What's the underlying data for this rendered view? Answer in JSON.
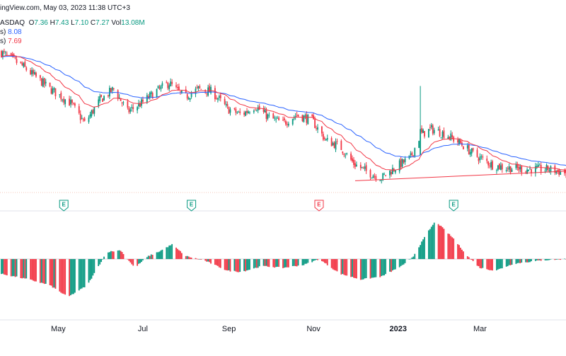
{
  "header": {
    "credit": "ingView.com, May 03, 2023 11:38 UTC+3",
    "exchange": "ASDAQ",
    "o_label": "O",
    "o": "7.36",
    "h_label": "H",
    "h": "7.43",
    "l_label": "L",
    "l": "7.10",
    "c_label": "C",
    "c": "7.27",
    "vol_label": "Vol",
    "vol": "13.08M",
    "ma1_prefix": "s)",
    "ma1_value": "8.08",
    "ma2_prefix": "s)",
    "ma2_value": "7.69"
  },
  "colors": {
    "up": "#089981",
    "down": "#f23645",
    "ma_slow": "#2962ff",
    "ma_fast": "#f23645",
    "trendline": "#f23645",
    "grid": "#f0f3fa",
    "earnings_up": "#089981",
    "earnings_down": "#f23645"
  },
  "chart_data": {
    "type": "candlestick",
    "price_ylim": [
      6.0,
      12.8
    ],
    "x_axis_labels": [
      "May",
      "Jul",
      "Sep",
      "Nov",
      "2023",
      "Mar"
    ],
    "x_axis_label_positions": [
      {
        "label": "May",
        "date": "2022-05-01"
      },
      {
        "label": "Jul",
        "date": "2022-07-01"
      },
      {
        "label": "Sep",
        "date": "2022-09-01"
      },
      {
        "label": "Nov",
        "date": "2022-11-01"
      },
      {
        "label": "2023",
        "date": "2023-01-01"
      },
      {
        "label": "Mar",
        "date": "2023-03-01"
      }
    ],
    "close_anchors": [
      [
        "2022-03-20",
        11.5
      ],
      [
        "2022-04-05",
        11.0
      ],
      [
        "2022-04-15",
        10.6
      ],
      [
        "2022-04-25",
        10.2
      ],
      [
        "2022-05-10",
        9.7
      ],
      [
        "2022-05-20",
        9.0
      ],
      [
        "2022-05-31",
        9.8
      ],
      [
        "2022-06-10",
        10.2
      ],
      [
        "2022-06-20",
        9.4
      ],
      [
        "2022-06-30",
        9.7
      ],
      [
        "2022-07-10",
        10.1
      ],
      [
        "2022-07-20",
        10.4
      ],
      [
        "2022-07-31",
        9.9
      ],
      [
        "2022-08-10",
        10.2
      ],
      [
        "2022-08-20",
        10.1
      ],
      [
        "2022-08-31",
        9.5
      ],
      [
        "2022-09-10",
        9.3
      ],
      [
        "2022-09-20",
        9.6
      ],
      [
        "2022-09-30",
        9.2
      ],
      [
        "2022-10-10",
        9.0
      ],
      [
        "2022-10-20",
        9.3
      ],
      [
        "2022-10-31",
        9.1
      ],
      [
        "2022-11-10",
        8.4
      ],
      [
        "2022-11-20",
        8.2
      ],
      [
        "2022-11-30",
        7.6
      ],
      [
        "2022-12-10",
        7.3
      ],
      [
        "2022-12-20",
        7.1
      ],
      [
        "2022-12-31",
        7.5
      ],
      [
        "2023-01-10",
        7.8
      ],
      [
        "2023-01-17",
        8.6
      ],
      [
        "2023-01-25",
        8.8
      ],
      [
        "2023-02-05",
        8.6
      ],
      [
        "2023-02-15",
        8.3
      ],
      [
        "2023-02-25",
        7.9
      ],
      [
        "2023-03-10",
        7.55
      ],
      [
        "2023-03-20",
        7.45
      ],
      [
        "2023-04-05",
        7.4
      ],
      [
        "2023-04-20",
        7.4
      ],
      [
        "2023-05-02",
        7.27
      ]
    ],
    "spike": {
      "date": "2023-01-17",
      "high": 10.3
    },
    "last_candle": {
      "open": 7.36,
      "high": 7.43,
      "low": 7.1,
      "close": 7.27,
      "volume": "13.08M"
    },
    "moving_averages": [
      {
        "value": 8.08
      },
      {
        "value": 7.69
      }
    ],
    "earnings_markers": [
      {
        "date": "2022-05-05",
        "label": "E",
        "beat": true
      },
      {
        "date": "2022-08-05",
        "label": "E",
        "beat": true
      },
      {
        "date": "2022-11-05",
        "label": "E",
        "beat": false
      },
      {
        "date": "2023-02-10",
        "label": "E",
        "beat": true
      }
    ],
    "trendline": {
      "start": [
        "2022-12-01",
        7.0
      ],
      "end": [
        "2023-05-10",
        7.35
      ]
    },
    "oscillator": {
      "type": "histogram",
      "ylim": [
        -0.8,
        0.8
      ],
      "anchors": [
        [
          "2022-03-20",
          -0.25
        ],
        [
          "2022-04-10",
          -0.35
        ],
        [
          "2022-04-25",
          -0.45
        ],
        [
          "2022-05-08",
          -0.65
        ],
        [
          "2022-05-22",
          -0.45
        ],
        [
          "2022-06-05",
          0.12
        ],
        [
          "2022-06-15",
          0.15
        ],
        [
          "2022-06-25",
          -0.15
        ],
        [
          "2022-07-05",
          0.05
        ],
        [
          "2022-07-12",
          0.12
        ],
        [
          "2022-07-22",
          0.25
        ],
        [
          "2022-08-01",
          0.05
        ],
        [
          "2022-08-15",
          -0.03
        ],
        [
          "2022-08-31",
          -0.2
        ],
        [
          "2022-09-10",
          -0.22
        ],
        [
          "2022-09-25",
          -0.12
        ],
        [
          "2022-10-10",
          -0.15
        ],
        [
          "2022-10-25",
          -0.1
        ],
        [
          "2022-11-05",
          0.0
        ],
        [
          "2022-11-20",
          -0.25
        ],
        [
          "2022-12-05",
          -0.35
        ],
        [
          "2022-12-20",
          -0.3
        ],
        [
          "2023-01-05",
          -0.1
        ],
        [
          "2023-01-12",
          0.05
        ],
        [
          "2023-01-22",
          0.45
        ],
        [
          "2023-01-28",
          0.65
        ],
        [
          "2023-02-10",
          0.35
        ],
        [
          "2023-02-20",
          0.05
        ],
        [
          "2023-03-01",
          -0.15
        ],
        [
          "2023-03-12",
          -0.2
        ],
        [
          "2023-03-25",
          -0.08
        ],
        [
          "2023-04-15",
          -0.02
        ],
        [
          "2023-05-02",
          0.0
        ]
      ]
    }
  }
}
